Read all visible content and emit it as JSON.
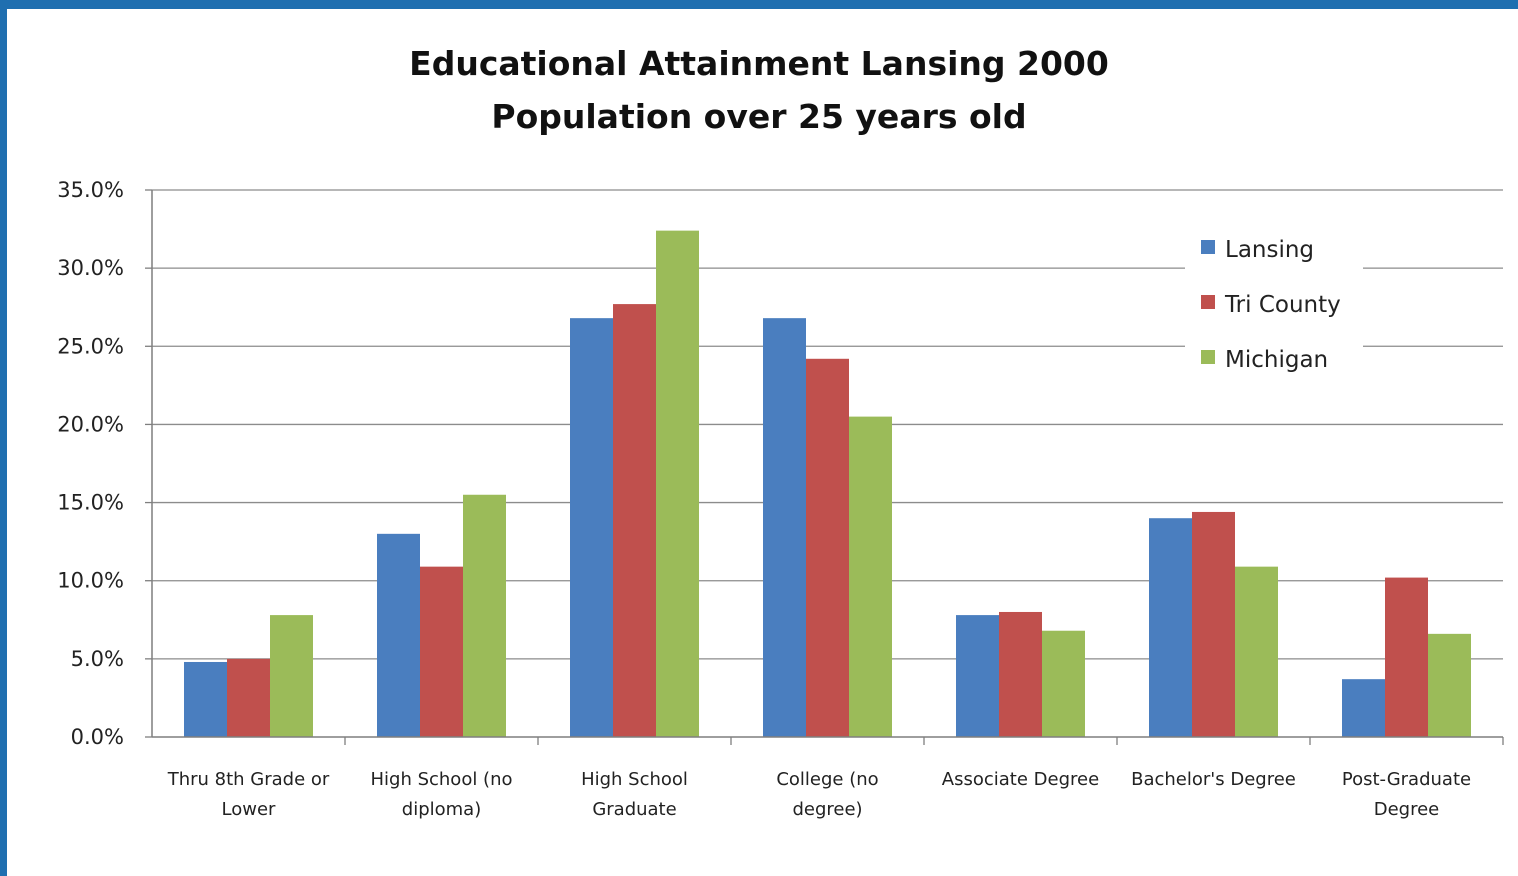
{
  "chart_data": {
    "type": "bar",
    "title": "Educational Attainment Lansing 2000",
    "subtitle": "Population over 25 years old",
    "categories": [
      [
        "Thru 8th Grade or",
        "Lower"
      ],
      [
        "High School (no",
        "diploma)"
      ],
      [
        "High School",
        "Graduate"
      ],
      [
        "College (no",
        "degree)"
      ],
      [
        "Associate Degree"
      ],
      [
        "Bachelor's Degree"
      ],
      [
        "Post-Graduate",
        "Degree"
      ]
    ],
    "series": [
      {
        "name": "Lansing",
        "color": "#4a7ebf",
        "values": [
          4.8,
          13.0,
          26.8,
          26.8,
          7.8,
          14.0,
          3.7
        ]
      },
      {
        "name": "Tri County",
        "color": "#c0504d",
        "values": [
          5.0,
          10.9,
          27.7,
          24.2,
          8.0,
          14.4,
          10.2
        ]
      },
      {
        "name": "Michigan",
        "color": "#9bbb59",
        "values": [
          7.8,
          15.5,
          32.4,
          20.5,
          6.8,
          10.9,
          6.6
        ]
      }
    ],
    "ylim": [
      0,
      35
    ],
    "yticks": [
      "0.0%",
      "5.0%",
      "10.0%",
      "15.0%",
      "20.0%",
      "25.0%",
      "30.0%",
      "35.0%"
    ],
    "grid": true,
    "legend_position": "top-right"
  }
}
